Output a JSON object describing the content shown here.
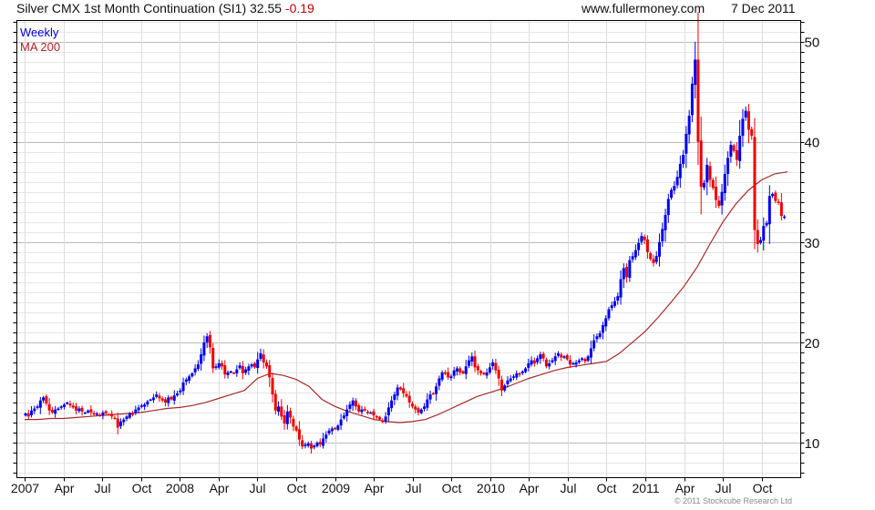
{
  "header": {
    "title": "Silver CMX 1st Month Continuation (SI1) 32.55",
    "change": "-0.19",
    "site": "www.fullermoney.com",
    "date": "7 Dec 2011"
  },
  "footer": {
    "copyright": "© 2011 Stockcube Research Ltd"
  },
  "colors": {
    "up": "#0000ee",
    "down": "#ee0000",
    "ma": "#a52a2a",
    "legend_weekly": "#0000cc",
    "legend_ma": "#b22222"
  },
  "chart_data": {
    "type": "candlestick",
    "title": "Silver CMX 1st Month Continuation (SI1)",
    "legend": [
      {
        "label": "Weekly",
        "position": "top-left"
      },
      {
        "label": "MA 200",
        "position": "top-left"
      }
    ],
    "ylim": [
      6.5,
      52.1
    ],
    "y_ticks": [
      10,
      20,
      30,
      40,
      50
    ],
    "x_ticks": [
      "2007",
      "Apr",
      "Jul",
      "Oct",
      "2008",
      "Apr",
      "Jul",
      "Oct",
      "2009",
      "Apr",
      "Jul",
      "Oct",
      "2010",
      "Apr",
      "Jul",
      "Oct",
      "2011",
      "Apr",
      "Jul",
      "Oct"
    ],
    "grid": true,
    "weekly_close": [
      12.9,
      12.6,
      13.2,
      13.4,
      13.6,
      14.2,
      14.5,
      13.9,
      13.2,
      13.0,
      13.3,
      13.4,
      13.6,
      13.8,
      14.0,
      13.7,
      13.5,
      13.2,
      13.4,
      13.1,
      13.0,
      13.2,
      13.0,
      12.8,
      12.9,
      12.7,
      13.0,
      12.9,
      12.8,
      12.6,
      12.4,
      11.5,
      12.1,
      12.3,
      12.6,
      12.9,
      12.8,
      13.3,
      13.5,
      13.7,
      13.8,
      14.1,
      14.3,
      14.5,
      14.8,
      14.4,
      14.2,
      14.0,
      14.5,
      14.3,
      14.7,
      14.9,
      15.2,
      16.0,
      16.3,
      16.6,
      16.9,
      17.4,
      17.8,
      18.8,
      20.0,
      20.6,
      19.5,
      17.4,
      17.6,
      17.9,
      17.6,
      16.8,
      17.0,
      17.1,
      16.9,
      17.3,
      17.7,
      16.9,
      17.3,
      17.6,
      17.8,
      17.5,
      18.3,
      18.9,
      18.0,
      17.6,
      16.5,
      14.8,
      13.2,
      13.6,
      12.6,
      11.9,
      13.1,
      12.5,
      11.6,
      11.2,
      10.3,
      9.6,
      9.8,
      9.9,
      9.4,
      9.7,
      10.0,
      9.8,
      10.4,
      10.8,
      11.2,
      11.4,
      11.4,
      11.7,
      12.3,
      12.7,
      13.3,
      13.8,
      14.2,
      13.6,
      13.1,
      13.3,
      13.2,
      13.0,
      13.0,
      12.7,
      12.5,
      12.3,
      12.1,
      12.6,
      13.5,
      14.2,
      14.8,
      15.5,
      15.3,
      14.9,
      14.6,
      14.0,
      13.6,
      13.3,
      13.0,
      13.3,
      13.6,
      14.3,
      14.8,
      14.9,
      15.6,
      16.4,
      17.0,
      16.9,
      16.5,
      16.6,
      17.2,
      17.4,
      17.0,
      16.9,
      17.6,
      18.2,
      18.6,
      17.5,
      17.2,
      16.9,
      16.8,
      17.0,
      17.5,
      18.0,
      17.2,
      16.4,
      15.2,
      15.7,
      16.2,
      16.4,
      16.6,
      16.9,
      16.8,
      17.1,
      17.4,
      17.9,
      18.2,
      17.9,
      18.4,
      18.8,
      18.4,
      17.6,
      17.9,
      18.2,
      18.6,
      18.9,
      18.5,
      18.6,
      18.3,
      17.8,
      17.9,
      18.0,
      18.2,
      18.4,
      18.1,
      18.6,
      19.4,
      20.2,
      20.6,
      20.9,
      21.7,
      22.4,
      23.3,
      23.7,
      24.1,
      24.6,
      26.3,
      27.4,
      26.5,
      28.2,
      28.6,
      29.2,
      29.9,
      30.6,
      30.2,
      29.0,
      28.3,
      27.9,
      28.6,
      30.0,
      31.3,
      32.7,
      34.3,
      35.2,
      35.6,
      36.5,
      37.8,
      38.7,
      40.8,
      42.6,
      45.8,
      48.2,
      40.0,
      35.5,
      35.9,
      37.7,
      36.2,
      35.4,
      34.2,
      33.6,
      35.0,
      36.8,
      38.4,
      39.7,
      39.1,
      38.2,
      40.6,
      42.3,
      43.1,
      41.2,
      40.6,
      31.2,
      29.8,
      30.2,
      31.6,
      31.9,
      34.6,
      34.8,
      34.1,
      33.9,
      32.6,
      32.55
    ],
    "ma200_monthly": [
      12.3,
      12.3,
      12.4,
      12.4,
      12.5,
      12.6,
      12.7,
      12.8,
      12.9,
      13.0,
      13.2,
      13.4,
      13.5,
      13.7,
      14.0,
      14.4,
      14.8,
      15.2,
      16.4,
      16.9,
      16.7,
      16.3,
      15.6,
      14.3,
      13.6,
      13.1,
      12.7,
      12.3,
      12.1,
      12.0,
      12.1,
      12.3,
      12.8,
      13.4,
      14.0,
      14.6,
      15.0,
      15.4,
      15.9,
      16.4,
      16.8,
      17.2,
      17.5,
      17.7,
      17.9,
      18.1,
      18.9,
      20.0,
      21.1,
      22.5,
      24.0,
      25.6,
      27.5,
      29.8,
      32.0,
      33.8,
      35.2,
      36.2,
      36.8,
      37.0
    ]
  }
}
